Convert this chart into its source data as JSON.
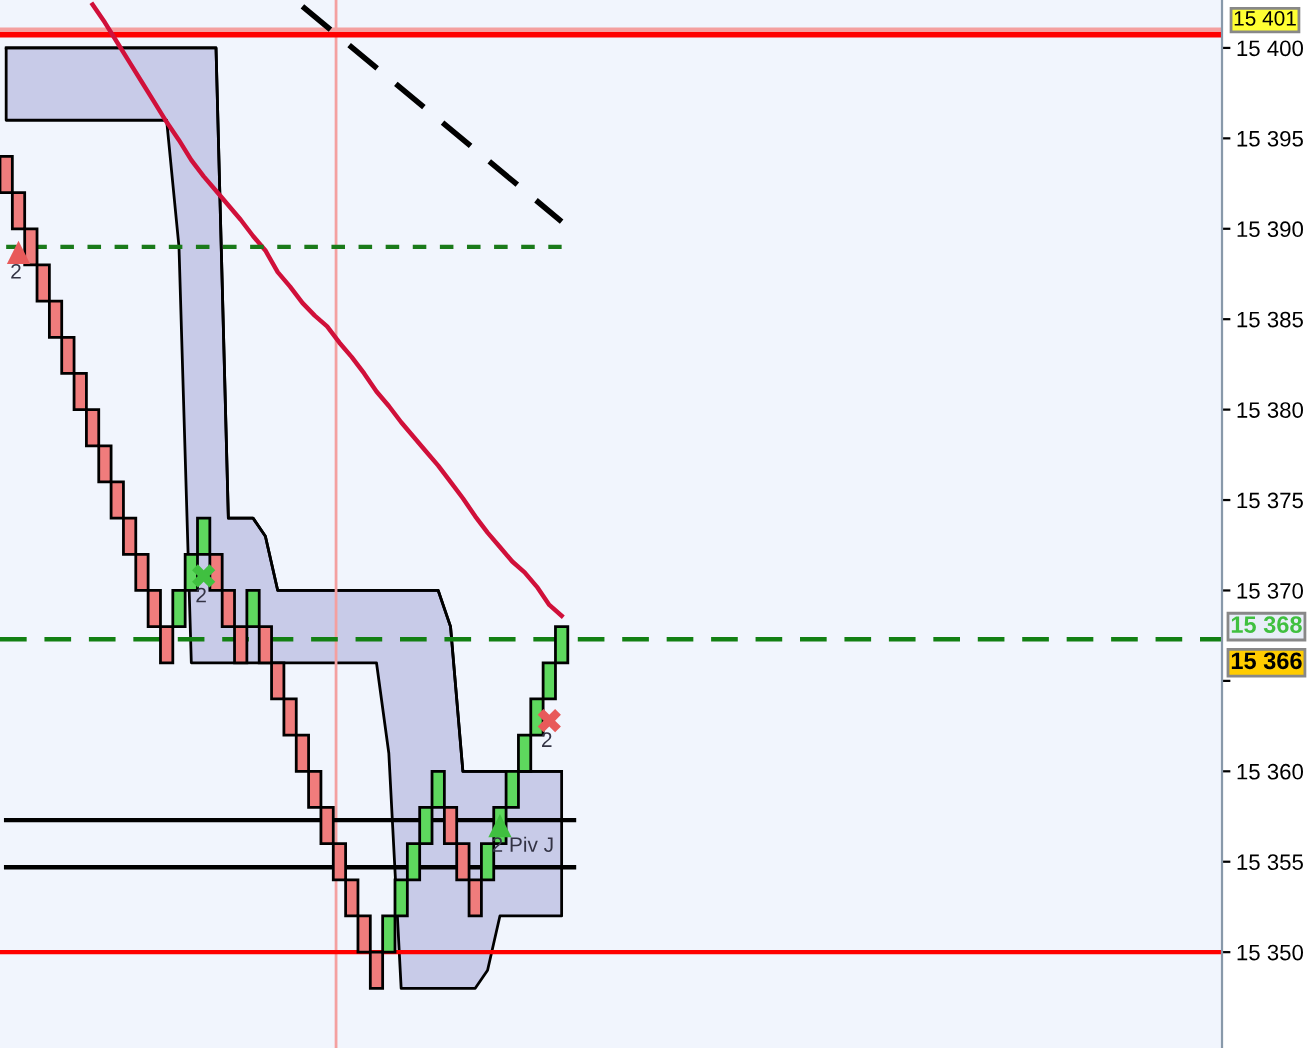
{
  "chart_data": {
    "type": "candlestick",
    "categories": [
      null,
      null,
      null,
      null,
      null,
      null,
      null,
      null,
      null,
      null,
      null,
      null,
      null,
      null,
      null,
      null,
      null,
      null,
      null,
      null,
      null,
      null,
      null,
      null,
      null,
      null,
      null,
      null,
      null,
      null,
      null,
      null,
      null,
      null,
      null,
      null,
      null,
      null,
      null,
      null,
      null,
      null,
      null,
      null,
      null,
      null,
      null,
      null,
      null,
      null,
      null,
      null,
      null,
      null,
      null,
      null,
      null,
      null,
      null,
      null,
      null,
      null,
      null,
      null,
      null,
      null,
      null,
      null,
      null,
      null,
      null,
      null,
      null,
      null,
      null,
      null,
      null,
      null,
      null,
      null,
      null,
      null,
      null,
      null,
      null,
      null,
      null,
      null,
      null,
      null,
      null,
      null,
      null,
      null,
      null,
      null,
      null,
      null,
      null
    ],
    "ohlc": [
      [
        15394,
        15394,
        15392,
        15392
      ],
      [
        15392,
        15392,
        15390,
        15390
      ],
      [
        15390,
        15390,
        15388,
        15388
      ],
      [
        15388,
        15388,
        15386,
        15386
      ],
      [
        15386,
        15386,
        15384,
        15384
      ],
      [
        15384,
        15384,
        15382,
        15382
      ],
      [
        15382,
        15382,
        15380,
        15380
      ],
      [
        15380,
        15380,
        15378,
        15378
      ],
      [
        15378,
        15378,
        15376,
        15376
      ],
      [
        15376,
        15376,
        15374,
        15374
      ],
      [
        15374,
        15374,
        15372,
        15372
      ],
      [
        15372,
        15372,
        15370,
        15370
      ],
      [
        15370,
        15370,
        15368,
        15368
      ],
      [
        15368,
        15368,
        15366,
        15366
      ],
      [
        15368,
        15370,
        15368,
        15370
      ],
      [
        15370,
        15372,
        15370,
        15372
      ],
      [
        15372,
        15374,
        15372,
        15374
      ],
      [
        15372,
        15372,
        15370,
        15370
      ],
      [
        15370,
        15370,
        15368,
        15368
      ],
      [
        15368,
        15368,
        15366,
        15366
      ],
      [
        15368,
        15370,
        15368,
        15370
      ],
      [
        15368,
        15368,
        15366,
        15366
      ],
      [
        15366,
        15366,
        15364,
        15364
      ],
      [
        15364,
        15364,
        15362,
        15362
      ],
      [
        15362,
        15362,
        15360,
        15360
      ],
      [
        15360,
        15360,
        15358,
        15358
      ],
      [
        15358,
        15358,
        15356,
        15356
      ],
      [
        15356,
        15356,
        15354,
        15354
      ],
      [
        15354,
        15354,
        15352,
        15352
      ],
      [
        15352,
        15352,
        15350,
        15350
      ],
      [
        15350,
        15350,
        15348,
        15348
      ],
      [
        15350,
        15352,
        15350,
        15352
      ],
      [
        15352,
        15354,
        15352,
        15354
      ],
      [
        15354,
        15356,
        15354,
        15356
      ],
      [
        15356,
        15358,
        15356,
        15358
      ],
      [
        15358,
        15360,
        15358,
        15360
      ],
      [
        15358,
        15358,
        15356,
        15356
      ],
      [
        15356,
        15356,
        15354,
        15354
      ],
      [
        15354,
        15354,
        15352,
        15352
      ],
      [
        15354,
        15356,
        15354,
        15356
      ],
      [
        15356,
        15358,
        15356,
        15358
      ],
      [
        15358,
        15360,
        15358,
        15360
      ],
      [
        15360,
        15362,
        15360,
        15362
      ],
      [
        15362,
        15364,
        15362,
        15364
      ],
      [
        15364,
        15366,
        15364,
        15366
      ],
      [
        15366,
        15368,
        15366,
        15368
      ],
      null,
      null,
      null,
      null,
      null,
      null,
      null,
      null,
      null,
      null,
      null,
      null,
      null,
      null,
      null,
      null,
      null,
      null,
      null,
      null,
      null,
      null,
      null,
      null,
      null,
      null,
      null,
      null,
      null,
      null,
      null,
      null,
      null,
      null,
      null,
      null,
      null,
      null,
      null,
      null,
      null,
      null,
      null,
      null,
      null,
      null,
      null,
      null,
      null,
      null,
      null,
      null,
      null
    ],
    "colors": [
      "#f07c7c",
      "#f07c7c",
      "#f07c7c",
      "#f07c7c",
      "#f07c7c",
      "#f07c7c",
      "#f07c7c",
      "#f07c7c",
      "#f07c7c",
      "#f07c7c",
      "#f07c7c",
      "#f07c7c",
      "#f07c7c",
      "#f07c7c",
      "#5ed85e",
      "#5ed85e",
      "#5ed85e",
      "#f07c7c",
      "#f07c7c",
      "#f07c7c",
      "#5ed85e",
      "#f07c7c",
      "#f07c7c",
      "#f07c7c",
      "#f07c7c",
      "#f07c7c",
      "#f07c7c",
      "#f07c7c",
      "#f07c7c",
      "#f07c7c",
      "#f07c7c",
      "#5ed85e",
      "#5ed85e",
      "#5ed85e",
      "#5ed85e",
      "#5ed85e",
      "#f07c7c",
      "#f07c7c",
      "#f07c7c",
      "#5ed85e",
      "#5ed85e",
      "#5ed85e",
      "#5ed85e",
      "#5ed85e",
      "#5ed85e",
      "#5ed85e",
      null,
      null,
      null,
      null,
      null,
      null,
      null,
      null,
      null,
      null,
      null,
      null,
      null,
      null,
      null,
      null,
      null,
      null,
      null,
      null,
      null,
      null,
      null,
      null,
      null,
      null,
      null,
      null,
      null,
      null,
      null,
      null,
      null,
      null,
      null,
      null,
      null,
      null,
      null,
      null,
      null,
      null,
      null,
      null,
      null,
      null,
      null,
      null,
      null,
      null,
      null,
      null,
      null
    ],
    "series": [
      {
        "type": "line",
        "color": "#000000",
        "values": [
          15400,
          15400,
          15400,
          15400,
          15400,
          15400,
          15400,
          15400,
          15400,
          15400,
          15400,
          15400,
          15400,
          15400,
          15400,
          15400,
          15400,
          15400,
          15374,
          15374,
          15374,
          15373,
          15370,
          15370,
          15370,
          15370,
          15370,
          15370,
          15370,
          15370,
          15370,
          15370,
          15370,
          15370,
          15370,
          15370,
          15368,
          15360,
          15360,
          15360,
          15360,
          15360,
          15360,
          15360,
          15360,
          15360,
          null,
          null,
          null,
          null,
          null,
          null,
          null,
          null,
          null,
          null,
          null,
          null,
          null,
          null,
          null,
          null,
          null,
          null,
          null,
          null,
          null,
          null,
          null,
          null,
          null,
          null,
          null,
          null,
          null,
          null,
          null,
          null,
          null,
          null,
          null,
          null,
          null,
          null,
          null,
          null,
          null,
          null,
          null,
          null,
          null,
          null,
          null,
          null,
          null,
          null,
          null,
          null,
          null
        ],
        "upper": [
          15400,
          15400,
          15400,
          15400,
          15400,
          15400,
          15400,
          15400,
          15400,
          15400,
          15400,
          15400,
          15400,
          15400,
          15400,
          15400,
          15400,
          15400,
          15374,
          15374,
          15374,
          15373,
          15370,
          15370,
          15370,
          15370,
          15370,
          15370,
          15370,
          15370,
          15370,
          15370,
          15370,
          15370,
          15370,
          15370,
          15368,
          15360,
          15360,
          15360,
          15360,
          15360,
          15360,
          15360,
          15360,
          15360,
          null,
          null,
          null,
          null,
          null,
          null,
          null,
          null,
          null,
          null,
          null,
          null,
          null,
          null,
          null,
          null,
          null,
          null,
          null,
          null,
          null,
          null,
          null,
          null,
          null,
          null,
          null,
          null,
          null,
          null,
          null,
          null,
          null,
          null,
          null,
          null,
          null,
          null,
          null,
          null,
          null,
          null,
          null,
          null,
          null,
          null,
          null,
          null,
          null,
          null,
          null,
          null,
          null
        ],
        "lower": [
          15396,
          15396,
          15396,
          15396,
          15396,
          15396,
          15396,
          15396,
          15396,
          15396,
          15396,
          15396,
          15396,
          15396,
          15389,
          15366,
          15366,
          15366,
          15366,
          15366,
          15366,
          15366,
          15366,
          15366,
          15366,
          15366,
          15366,
          15366,
          15366,
          15366,
          15366,
          15361,
          15348,
          15348,
          15348,
          15348,
          15348,
          15348,
          15348,
          15349,
          15352,
          15352,
          15352,
          15352,
          15352,
          15352,
          null,
          null,
          null,
          null,
          null,
          null,
          null,
          null,
          null,
          null,
          null,
          null,
          null,
          null,
          null,
          null,
          null,
          null,
          null,
          null,
          null,
          null,
          null,
          null,
          null,
          null,
          null,
          null,
          null,
          null,
          null,
          null,
          null,
          null,
          null,
          null,
          null,
          null,
          null,
          null,
          null,
          null,
          null,
          null,
          null,
          null,
          null,
          null,
          null,
          null,
          null,
          null,
          null
        ]
      },
      {
        "type": "line",
        "color": "#d0103a",
        "values": [
          null,
          null,
          null,
          null,
          null,
          null,
          null,
          15402.4,
          15401.4,
          15400.3,
          15399.2,
          15398.1,
          15397.0,
          15395.9,
          15394.9,
          15393.8,
          15392.9,
          15392.1,
          15391.3,
          15390.5,
          15389.6,
          15388.8,
          15387.6,
          15386.8,
          15385.9,
          15385.2,
          15384.6,
          15383.7,
          15382.9,
          15382.0,
          15381.0,
          15380.2,
          15379.3,
          15378.5,
          15377.7,
          15376.9,
          15376.0,
          15375.1,
          15374.1,
          15373.2,
          15372.4,
          15371.6,
          15371.0,
          15370.2,
          15369.2,
          15368.6,
          null,
          null,
          null,
          null,
          null,
          null,
          null,
          null,
          null,
          null,
          null,
          null,
          null,
          null,
          null,
          null,
          null,
          null,
          null,
          null,
          null,
          null,
          null,
          null,
          null,
          null,
          null,
          null,
          null,
          null,
          null,
          null,
          null,
          null,
          null,
          null,
          null,
          null,
          null,
          null,
          null,
          null,
          null,
          null,
          null,
          null,
          null,
          null,
          null,
          null,
          null,
          null,
          null
        ]
      },
      {
        "type": "line",
        "color": "#000000",
        "line_style": "dashed",
        "values": [
          null,
          null,
          null,
          null,
          null,
          null,
          null,
          null,
          null,
          null,
          null,
          null,
          null,
          null,
          null,
          null,
          null,
          null,
          null,
          null,
          null,
          null,
          null,
          null,
          15402.3,
          null,
          null,
          null,
          null,
          null,
          null,
          null,
          null,
          null,
          null,
          null,
          null,
          null,
          null,
          null,
          null,
          null,
          null,
          null,
          null,
          15390.4,
          null,
          null,
          null,
          null,
          null,
          null,
          null,
          null,
          null,
          null,
          null,
          null,
          null,
          null,
          null,
          null,
          null,
          null,
          null,
          null,
          null,
          null,
          null,
          null,
          null,
          null,
          null,
          null,
          null,
          null,
          null,
          null,
          null,
          null,
          null,
          null,
          null,
          null,
          null,
          null,
          null,
          null,
          null,
          null,
          null,
          null,
          null,
          null,
          null,
          null,
          null,
          null,
          null
        ]
      },
      {
        "type": "line",
        "color": "#1a7a1a",
        "line_style": "dotted",
        "values": [
          15389.0,
          null,
          null,
          null,
          null,
          null,
          null,
          null,
          null,
          null,
          null,
          null,
          null,
          null,
          null,
          null,
          null,
          null,
          null,
          null,
          null,
          null,
          null,
          null,
          null,
          null,
          null,
          null,
          null,
          null,
          null,
          null,
          null,
          null,
          null,
          null,
          null,
          null,
          null,
          null,
          null,
          null,
          null,
          null,
          null,
          15389.0,
          null,
          null,
          null,
          null,
          null,
          null,
          null,
          null,
          null,
          null,
          null,
          null,
          null,
          null,
          null,
          null,
          null,
          null,
          null,
          null,
          null,
          null,
          null,
          null,
          null,
          null,
          null,
          null,
          null,
          null,
          null,
          null,
          null,
          null,
          null,
          null,
          null,
          null,
          null,
          null,
          null,
          null,
          null,
          null,
          null,
          null,
          null,
          null,
          null,
          null,
          null,
          null,
          null
        ]
      },
      {
        "type": "line",
        "color": "#000000",
        "values": [
          15357.3,
          null,
          null,
          null,
          null,
          null,
          null,
          null,
          null,
          null,
          null,
          null,
          null,
          null,
          null,
          null,
          null,
          null,
          null,
          null,
          null,
          null,
          null,
          null,
          null,
          null,
          null,
          null,
          null,
          null,
          null,
          null,
          null,
          null,
          null,
          null,
          null,
          null,
          null,
          null,
          null,
          null,
          null,
          null,
          null,
          null,
          15357.3,
          null,
          null,
          null,
          null,
          null,
          null,
          null,
          null,
          null,
          null,
          null,
          null,
          null,
          null,
          null,
          null,
          null,
          null,
          null,
          null,
          null,
          null,
          null,
          null,
          null,
          null,
          null,
          null,
          null,
          null,
          null,
          null,
          null,
          null,
          null,
          null,
          null,
          null,
          null,
          null,
          null,
          null,
          null,
          null,
          null,
          null,
          null,
          null,
          null,
          null,
          null,
          null
        ]
      },
      {
        "type": "line",
        "color": "#000000",
        "values": [
          15354.7,
          null,
          null,
          null,
          null,
          null,
          null,
          null,
          null,
          null,
          null,
          null,
          null,
          null,
          null,
          null,
          null,
          null,
          null,
          null,
          null,
          null,
          null,
          null,
          null,
          null,
          null,
          null,
          null,
          null,
          null,
          null,
          null,
          null,
          null,
          null,
          null,
          null,
          null,
          null,
          null,
          null,
          null,
          null,
          null,
          null,
          15354.7,
          null,
          null,
          null,
          null,
          null,
          null,
          null,
          null,
          null,
          null,
          null,
          null,
          null,
          null,
          null,
          null,
          null,
          null,
          null,
          null,
          null,
          null,
          null,
          null,
          null,
          null,
          null,
          null,
          null,
          null,
          null,
          null,
          null,
          null,
          null,
          null,
          null,
          null,
          null,
          null,
          null,
          null,
          null,
          null,
          null,
          null,
          null,
          null,
          null,
          null,
          null,
          null
        ]
      },
      {
        "type": "scatter",
        "color": "#e85a5a",
        "marker": "triangle",
        "values": [
          null,
          15388.7,
          null,
          null,
          null,
          null,
          null,
          null,
          null,
          null,
          null,
          null,
          null,
          null,
          null,
          null,
          null,
          null,
          null,
          null,
          null,
          null,
          null,
          null,
          null,
          null,
          null,
          null,
          null,
          null,
          null,
          null,
          null,
          null,
          null,
          null,
          null,
          null,
          null,
          null,
          null,
          null,
          null,
          null,
          null,
          null,
          null,
          null,
          null,
          null,
          null,
          null,
          null,
          null,
          null,
          null,
          null,
          null,
          null,
          null,
          null,
          null,
          null,
          null,
          null,
          null,
          null,
          null,
          null,
          null,
          null,
          null,
          null,
          null,
          null,
          null,
          null,
          null,
          null,
          null,
          null,
          null,
          null,
          null,
          null,
          null,
          null,
          null,
          null,
          null,
          null,
          null,
          null,
          null,
          null,
          null,
          null,
          null,
          null
        ]
      },
      {
        "type": "scatter",
        "color": "#40c040",
        "marker": "cross",
        "values": [
          null,
          null,
          null,
          null,
          null,
          null,
          null,
          null,
          null,
          null,
          null,
          null,
          null,
          null,
          null,
          null,
          15370.8,
          null,
          null,
          null,
          null,
          null,
          null,
          null,
          null,
          null,
          null,
          null,
          null,
          null,
          null,
          null,
          null,
          null,
          null,
          null,
          null,
          null,
          null,
          null,
          null,
          null,
          null,
          null,
          null,
          null,
          null,
          null,
          null,
          null,
          null,
          null,
          null,
          null,
          null,
          null,
          null,
          null,
          null,
          null,
          null,
          null,
          null,
          null,
          null,
          null,
          null,
          null,
          null,
          null,
          null,
          null,
          null,
          null,
          null,
          null,
          null,
          null,
          null,
          null,
          null,
          null,
          null,
          null,
          null,
          null,
          null,
          null,
          null,
          null,
          null,
          null,
          null,
          null,
          null,
          null,
          null,
          null,
          null
        ]
      },
      {
        "type": "scatter",
        "color": "#e85a5a",
        "marker": "cross",
        "values": [
          null,
          null,
          null,
          null,
          null,
          null,
          null,
          null,
          null,
          null,
          null,
          null,
          null,
          null,
          null,
          null,
          null,
          null,
          null,
          null,
          null,
          null,
          null,
          null,
          null,
          null,
          null,
          null,
          null,
          null,
          null,
          null,
          null,
          null,
          null,
          null,
          null,
          null,
          null,
          null,
          null,
          null,
          null,
          null,
          15362.8,
          null,
          null,
          null,
          null,
          null,
          null,
          null,
          null,
          null,
          null,
          null,
          null,
          null,
          null,
          null,
          null,
          null,
          null,
          null,
          null,
          null,
          null,
          null,
          null,
          null,
          null,
          null,
          null,
          null,
          null,
          null,
          null,
          null,
          null,
          null,
          null,
          null,
          null,
          null,
          null,
          null,
          null,
          null,
          null,
          null,
          null,
          null,
          null,
          null,
          null,
          null,
          null,
          null,
          null
        ]
      },
      {
        "type": "scatter",
        "color": "#40c040",
        "marker": "triangle",
        "values": [
          null,
          null,
          null,
          null,
          null,
          null,
          null,
          null,
          null,
          null,
          null,
          null,
          null,
          null,
          null,
          null,
          null,
          null,
          null,
          null,
          null,
          null,
          null,
          null,
          null,
          null,
          null,
          null,
          null,
          null,
          null,
          null,
          null,
          null,
          null,
          null,
          null,
          null,
          null,
          null,
          15357.0,
          null,
          null,
          null,
          null,
          null,
          null,
          null,
          null,
          null,
          null,
          null,
          null,
          null,
          null,
          null,
          null,
          null,
          null,
          null,
          null,
          null,
          null,
          null,
          null,
          null,
          null,
          null,
          null,
          null,
          null,
          null,
          null,
          null,
          null,
          null,
          null,
          null,
          null,
          null,
          null,
          null,
          null,
          null,
          null,
          null,
          null,
          null,
          null,
          null,
          null,
          null,
          null,
          null,
          null,
          null,
          null,
          null,
          null
        ]
      }
    ],
    "ref_lines": [
      {
        "axis": "y",
        "value": 15400.8,
        "color": "#ff0000"
      },
      {
        "axis": "y",
        "value": 15401,
        "label": "15 401",
        "color": "#f4a0a0"
      },
      {
        "axis": "y",
        "value": 15350,
        "color": "#ff0000"
      },
      {
        "axis": "y",
        "value": 15367.3,
        "color": "#138013",
        "line_style": "dashed"
      }
    ],
    "annotations": [
      {
        "text": "2",
        "y": 15388.7
      },
      {
        "text": "2",
        "y": 15370.8
      },
      {
        "text": "2",
        "y": 15362.8
      },
      {
        "text": "2 Piv J",
        "y": 15357.0
      },
      {
        "text": "15 368",
        "y": 15368
      },
      {
        "text": "15 366",
        "y": 15366
      }
    ],
    "ylim": [
      15344.7,
      15402.65
    ],
    "yticks": [
      {
        "value": 15350,
        "label": "15 350"
      },
      {
        "value": 15355,
        "label": "15 355"
      },
      {
        "value": 15360,
        "label": "15 360"
      },
      {
        "value": 15365,
        "label": null
      },
      {
        "value": 15370,
        "label": "15 370"
      },
      {
        "value": 15375,
        "label": "15 375"
      },
      {
        "value": 15380,
        "label": "15 380"
      },
      {
        "value": 15385,
        "label": "15 385"
      },
      {
        "value": 15390,
        "label": "15 390"
      },
      {
        "value": 15395,
        "label": "15 395"
      },
      {
        "value": 15400,
        "label": "15 400"
      }
    ],
    "tick_labels": "y",
    "grid": false,
    "legend": false
  }
}
